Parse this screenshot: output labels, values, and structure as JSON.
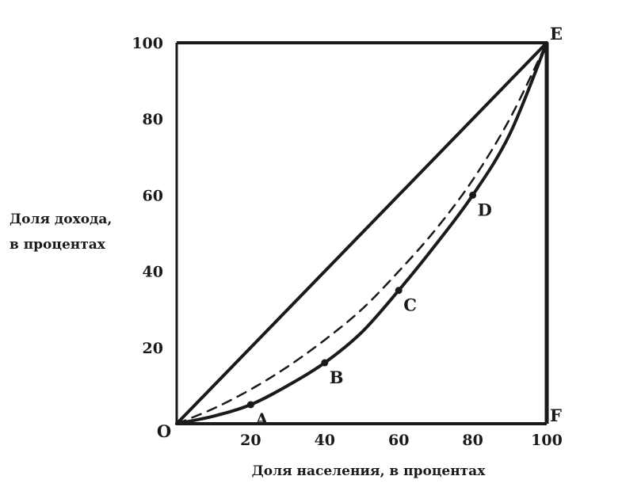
{
  "chart_data": {
    "type": "line",
    "xlabel": "Доля населения, в процентах",
    "ylabel_lines": [
      "Доля дохода,",
      "в процентах"
    ],
    "xlim": [
      0,
      100
    ],
    "ylim": [
      0,
      100
    ],
    "x_ticks": [
      "20",
      "40",
      "60",
      "80",
      "100"
    ],
    "y_ticks": [
      "20",
      "40",
      "60",
      "80",
      "100"
    ],
    "origin_label": "O",
    "colors": {
      "ink": "#1a1a1a",
      "background": "#ffffff"
    },
    "series": [
      {
        "role": "equality-line",
        "style": "solid",
        "points": [
          [
            0,
            0
          ],
          [
            100,
            100
          ]
        ]
      },
      {
        "role": "dashed-curve",
        "style": "dashed",
        "points": [
          [
            0,
            0
          ],
          [
            10,
            4
          ],
          [
            20,
            9
          ],
          [
            30,
            15
          ],
          [
            40,
            22
          ],
          [
            50,
            30
          ],
          [
            60,
            40
          ],
          [
            70,
            51
          ],
          [
            80,
            64
          ],
          [
            90,
            80
          ],
          [
            100,
            100
          ]
        ]
      },
      {
        "role": "lorenz-curve",
        "style": "solid",
        "points": [
          [
            0,
            0
          ],
          [
            10,
            2
          ],
          [
            20,
            5
          ],
          [
            30,
            10
          ],
          [
            40,
            16
          ],
          [
            50,
            24
          ],
          [
            60,
            35
          ],
          [
            70,
            47
          ],
          [
            80,
            60
          ],
          [
            90,
            76
          ],
          [
            100,
            100
          ]
        ]
      }
    ],
    "points": [
      {
        "label": "A",
        "x": 20,
        "y": 5
      },
      {
        "label": "B",
        "x": 40,
        "y": 16
      },
      {
        "label": "C",
        "x": 60,
        "y": 35
      },
      {
        "label": "D",
        "x": 80,
        "y": 60
      }
    ],
    "corner_labels": [
      {
        "label": "E",
        "x": 100,
        "y": 100
      },
      {
        "label": "F",
        "x": 100,
        "y": 0
      }
    ]
  }
}
